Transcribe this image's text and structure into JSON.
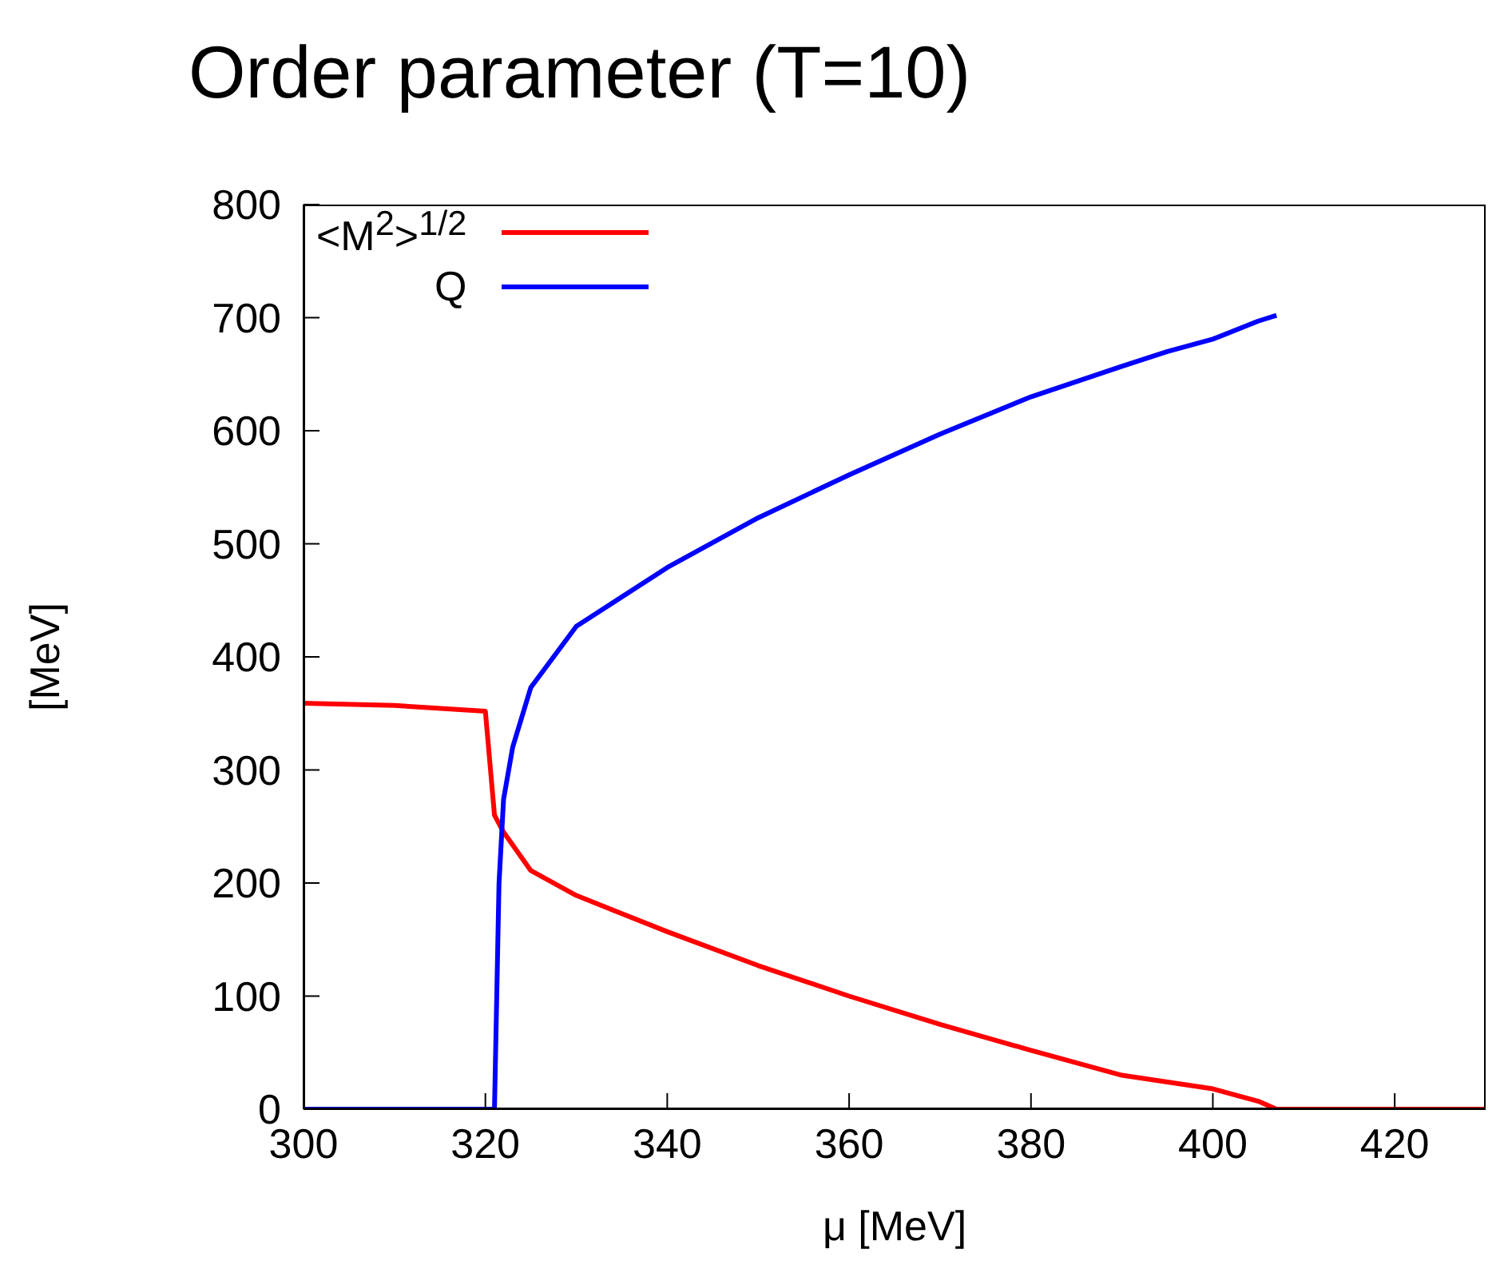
{
  "chart_data": {
    "type": "line",
    "title": "Order parameter (T=10)",
    "xlabel": "μ [MeV]",
    "ylabel": "[MeV]",
    "xlim": [
      300,
      430
    ],
    "xticks": [
      300,
      320,
      340,
      360,
      380,
      400,
      420
    ],
    "ylim": [
      0,
      800
    ],
    "yticks": [
      0,
      100,
      200,
      300,
      400,
      500,
      600,
      700,
      800
    ],
    "legend": "top left",
    "marker": "none",
    "line_style": "solid",
    "series": [
      {
        "name": "<M$^{2}$>$^{1/2}$",
        "color": "#ff0000",
        "x": [
          300,
          310,
          320,
          321,
          322,
          325,
          330,
          340,
          350,
          360,
          370,
          380,
          390,
          400,
          405,
          407,
          420,
          430
        ],
        "values": [
          359,
          357,
          352,
          260,
          245,
          211,
          189,
          157,
          127,
          100,
          75,
          52,
          30,
          18,
          7,
          0,
          0,
          0
        ]
      },
      {
        "name": "Q",
        "color": "#0000ff",
        "x": [
          300,
          310,
          321,
          321.5,
          322,
          323,
          325,
          330,
          340,
          350,
          360,
          370,
          380,
          390,
          395,
          400,
          405,
          407
        ],
        "values": [
          0,
          0,
          0,
          200,
          274,
          320,
          373,
          427,
          479,
          523,
          561,
          597,
          630,
          657,
          670,
          681,
          697,
          702
        ]
      }
    ]
  }
}
